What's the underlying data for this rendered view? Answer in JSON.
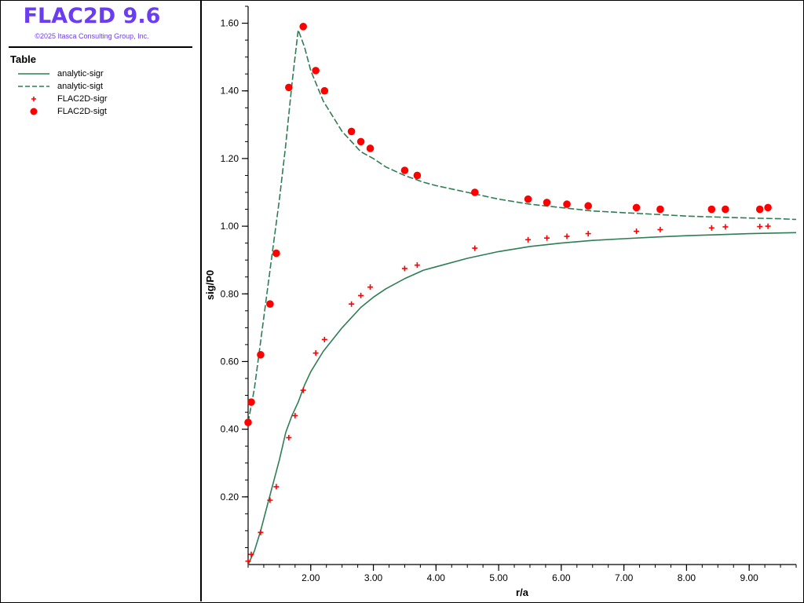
{
  "app": {
    "title": "FLAC2D 9.6",
    "copyright": "©2025 Itasca Consulting Group, Inc.",
    "title_color": "#6a3df0"
  },
  "legend": {
    "title": "Table",
    "items": [
      {
        "label": "analytic-sigr",
        "style": "solid-line",
        "color": "#2e7d55"
      },
      {
        "label": "analytic-sigt",
        "style": "dashed-line",
        "color": "#2e7d55"
      },
      {
        "label": "FLAC2D-sigr",
        "style": "plus-marker",
        "color": "#ff0000"
      },
      {
        "label": "FLAC2D-sigt",
        "style": "dot-marker",
        "color": "#ff0000"
      }
    ]
  },
  "chart_data": {
    "type": "line",
    "xlabel": "r/a",
    "ylabel": "sig/P0",
    "xlim": [
      1.0,
      9.75
    ],
    "ylim": [
      0.0,
      1.65
    ],
    "x_ticks": [
      "2.00",
      "3.00",
      "4.00",
      "5.00",
      "6.00",
      "7.00",
      "8.00",
      "9.00"
    ],
    "y_ticks": [
      "0.20",
      "0.40",
      "0.60",
      "0.80",
      "1.00",
      "1.20",
      "1.40",
      "1.60"
    ],
    "grid": false,
    "series": [
      {
        "name": "analytic-sigr",
        "kind": "line",
        "dash": "solid",
        "color": "#2e7d55",
        "points": [
          [
            1.0,
            0.0
          ],
          [
            1.1,
            0.04
          ],
          [
            1.2,
            0.1
          ],
          [
            1.3,
            0.17
          ],
          [
            1.4,
            0.24
          ],
          [
            1.5,
            0.31
          ],
          [
            1.6,
            0.39
          ],
          [
            1.7,
            0.44
          ],
          [
            1.8,
            0.48
          ],
          [
            1.9,
            0.53
          ],
          [
            2.0,
            0.57
          ],
          [
            2.2,
            0.63
          ],
          [
            2.5,
            0.7
          ],
          [
            2.8,
            0.76
          ],
          [
            3.0,
            0.79
          ],
          [
            3.2,
            0.815
          ],
          [
            3.5,
            0.845
          ],
          [
            3.8,
            0.87
          ],
          [
            4.0,
            0.88
          ],
          [
            4.5,
            0.905
          ],
          [
            5.0,
            0.925
          ],
          [
            5.5,
            0.94
          ],
          [
            6.0,
            0.95
          ],
          [
            6.5,
            0.958
          ],
          [
            7.0,
            0.963
          ],
          [
            7.5,
            0.968
          ],
          [
            8.0,
            0.972
          ],
          [
            8.5,
            0.975
          ],
          [
            9.0,
            0.978
          ],
          [
            9.5,
            0.98
          ],
          [
            9.75,
            0.981
          ]
        ]
      },
      {
        "name": "analytic-sigt",
        "kind": "line",
        "dash": "dashed",
        "color": "#2e7d55",
        "points": [
          [
            1.0,
            0.42
          ],
          [
            1.1,
            0.52
          ],
          [
            1.2,
            0.66
          ],
          [
            1.3,
            0.8
          ],
          [
            1.4,
            0.94
          ],
          [
            1.5,
            1.08
          ],
          [
            1.6,
            1.24
          ],
          [
            1.7,
            1.42
          ],
          [
            1.75,
            1.5
          ],
          [
            1.8,
            1.58
          ],
          [
            1.9,
            1.53
          ],
          [
            2.0,
            1.46
          ],
          [
            2.2,
            1.37
          ],
          [
            2.5,
            1.28
          ],
          [
            2.8,
            1.22
          ],
          [
            3.0,
            1.2
          ],
          [
            3.2,
            1.175
          ],
          [
            3.5,
            1.15
          ],
          [
            3.8,
            1.13
          ],
          [
            4.0,
            1.12
          ],
          [
            4.5,
            1.1
          ],
          [
            5.0,
            1.08
          ],
          [
            5.5,
            1.065
          ],
          [
            6.0,
            1.055
          ],
          [
            6.5,
            1.045
          ],
          [
            7.0,
            1.04
          ],
          [
            7.5,
            1.035
          ],
          [
            8.0,
            1.03
          ],
          [
            8.5,
            1.027
          ],
          [
            9.0,
            1.024
          ],
          [
            9.5,
            1.022
          ],
          [
            9.75,
            1.02
          ]
        ]
      },
      {
        "name": "FLAC2D-sigr",
        "kind": "scatter",
        "marker": "plus",
        "color": "#ff0000",
        "points": [
          [
            1.0,
            0.01
          ],
          [
            1.05,
            0.03
          ],
          [
            1.2,
            0.095
          ],
          [
            1.35,
            0.19
          ],
          [
            1.45,
            0.23
          ],
          [
            1.65,
            0.375
          ],
          [
            1.75,
            0.44
          ],
          [
            1.88,
            0.515
          ],
          [
            2.08,
            0.625
          ],
          [
            2.22,
            0.665
          ],
          [
            2.65,
            0.77
          ],
          [
            2.8,
            0.795
          ],
          [
            2.95,
            0.82
          ],
          [
            3.5,
            0.875
          ],
          [
            3.7,
            0.885
          ],
          [
            4.62,
            0.935
          ],
          [
            5.47,
            0.96
          ],
          [
            5.77,
            0.965
          ],
          [
            6.09,
            0.97
          ],
          [
            6.43,
            0.978
          ],
          [
            7.2,
            0.985
          ],
          [
            7.58,
            0.99
          ],
          [
            8.4,
            0.995
          ],
          [
            8.62,
            0.998
          ],
          [
            9.17,
            0.999
          ],
          [
            9.3,
            1.0
          ]
        ]
      },
      {
        "name": "FLAC2D-sigt",
        "kind": "scatter",
        "marker": "dot",
        "color": "#ff0000",
        "points": [
          [
            1.0,
            0.42
          ],
          [
            1.05,
            0.48
          ],
          [
            1.2,
            0.62
          ],
          [
            1.35,
            0.77
          ],
          [
            1.45,
            0.92
          ],
          [
            1.65,
            1.41
          ],
          [
            1.88,
            1.59
          ],
          [
            2.08,
            1.46
          ],
          [
            2.22,
            1.4
          ],
          [
            2.65,
            1.28
          ],
          [
            2.8,
            1.25
          ],
          [
            2.95,
            1.23
          ],
          [
            3.5,
            1.165
          ],
          [
            3.7,
            1.15
          ],
          [
            4.62,
            1.1
          ],
          [
            5.47,
            1.08
          ],
          [
            5.77,
            1.07
          ],
          [
            6.09,
            1.065
          ],
          [
            6.43,
            1.06
          ],
          [
            7.2,
            1.055
          ],
          [
            7.58,
            1.05
          ],
          [
            8.4,
            1.05
          ],
          [
            8.62,
            1.05
          ],
          [
            9.17,
            1.05
          ],
          [
            9.3,
            1.055
          ]
        ]
      }
    ]
  }
}
